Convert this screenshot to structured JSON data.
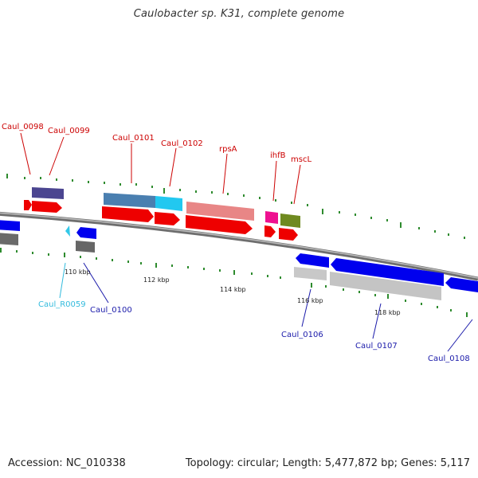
{
  "title": "Caulobacter sp. K31, complete genome",
  "footer": {
    "accession": "Accession: NC_010338",
    "summary": "Topology: circular; Length: 5,477,872 bp; Genes: 5,117"
  },
  "colors": {
    "forward_label": "#cc0000",
    "reverse_label": "#1a1aaa",
    "rna_label": "#33bbdd",
    "backbone": "#888888",
    "gc_ticks": "#2e8b2e"
  },
  "scale_ticks": [
    "110 kbp",
    "112 kbp",
    "114 kbp",
    "116 kbp",
    "118 kbp"
  ],
  "labels": [
    {
      "id": "caul-0098",
      "text": "Caul_0098",
      "strand": "forward"
    },
    {
      "id": "caul-0099",
      "text": "Caul_0099",
      "strand": "forward"
    },
    {
      "id": "caul-0101",
      "text": "Caul_0101",
      "strand": "forward"
    },
    {
      "id": "caul-0102",
      "text": "Caul_0102",
      "strand": "forward"
    },
    {
      "id": "rpsa",
      "text": "rpsA",
      "strand": "forward"
    },
    {
      "id": "ihfb",
      "text": "ihfB",
      "strand": "forward"
    },
    {
      "id": "mscl",
      "text": "mscL",
      "strand": "forward"
    },
    {
      "id": "caul-r0059",
      "text": "Caul_R0059",
      "strand": "rna"
    },
    {
      "id": "caul-0100",
      "text": "Caul_0100",
      "strand": "reverse"
    },
    {
      "id": "caul-0106",
      "text": "Caul_0106",
      "strand": "reverse"
    },
    {
      "id": "caul-0107",
      "text": "Caul_0107",
      "strand": "reverse"
    },
    {
      "id": "caul-0108",
      "text": "Caul_0108",
      "strand": "reverse"
    }
  ]
}
